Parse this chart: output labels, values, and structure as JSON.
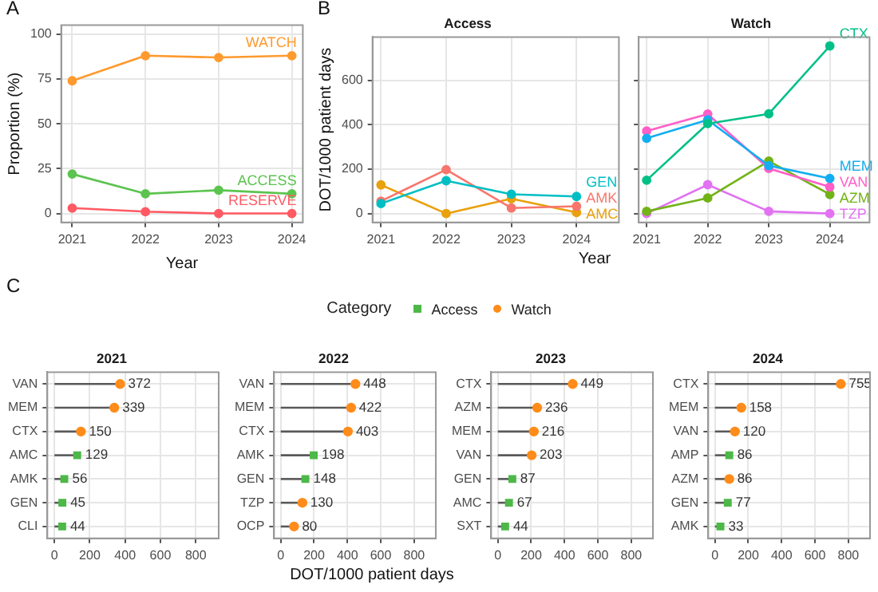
{
  "chart_data": [
    {
      "type": "line",
      "annotations": [
        "A"
      ],
      "xlabel": "Year",
      "ylabel": "Proportion (%)",
      "x": [
        2021,
        2022,
        2023,
        2024
      ],
      "xlim": [
        2020.85,
        2024.15
      ],
      "xticks": [
        2021,
        2022,
        2023,
        2024
      ],
      "ylim": [
        -5,
        105
      ],
      "yticks": [
        0,
        25,
        50,
        75,
        100
      ],
      "grid": true,
      "marker": "circle",
      "legend": false,
      "series": [
        {
          "name": "WATCH",
          "color": "#ff9a2e",
          "values": [
            74,
            88,
            87,
            88
          ]
        },
        {
          "name": "ACCESS",
          "color": "#5cc44f",
          "values": [
            22,
            11,
            13,
            11
          ]
        },
        {
          "name": "RESERVE",
          "color": "#ff5a64",
          "values": [
            3,
            1,
            0,
            0
          ]
        }
      ]
    },
    {
      "type": "line",
      "annotations": [
        "B"
      ],
      "title": "Access",
      "xlabel": "Year",
      "ylabel": "DOT/1000 patient days",
      "x": [
        2021,
        2022,
        2023,
        2024
      ],
      "xlim": [
        2020.87,
        2024.65
      ],
      "xticks": [
        2021,
        2022,
        2023,
        2024
      ],
      "ylim": [
        -40,
        795
      ],
      "yticks": [
        0,
        200,
        400,
        600
      ],
      "grid": true,
      "marker": "circle",
      "legend": false,
      "series": [
        {
          "name": "GEN",
          "color": "#00bfc4",
          "values": [
            45,
            148,
            87,
            77
          ]
        },
        {
          "name": "AMK",
          "color": "#f8766d",
          "values": [
            56,
            198,
            25,
            33
          ]
        },
        {
          "name": "AMC",
          "color": "#e9a10c",
          "values": [
            129,
            0,
            67,
            5
          ]
        }
      ]
    },
    {
      "type": "line",
      "title": "Watch",
      "x": [
        2021,
        2022,
        2023,
        2024
      ],
      "xlim": [
        2020.87,
        2024.65
      ],
      "xticks": [
        2021,
        2022,
        2023,
        2024
      ],
      "ylim": [
        -40,
        795
      ],
      "yticks": [
        0,
        200,
        400,
        600
      ],
      "grid": true,
      "marker": "circle",
      "legend": false,
      "tick_labels": "x",
      "series": [
        {
          "name": "CTX",
          "color": "#00c087",
          "values": [
            150,
            405,
            449,
            755
          ]
        },
        {
          "name": "MEM",
          "color": "#14aef0",
          "values": [
            339,
            422,
            216,
            158
          ]
        },
        {
          "name": "VAN",
          "color": "#ff5fc8",
          "values": [
            372,
            448,
            203,
            120
          ]
        },
        {
          "name": "AZM",
          "color": "#72b317",
          "values": [
            10,
            70,
            236,
            86
          ]
        },
        {
          "name": "TZP",
          "color": "#e272f2",
          "values": [
            0,
            130,
            10,
            0
          ]
        }
      ]
    },
    {
      "type": "lollipop",
      "orientation": "horizontal",
      "annotations": [
        "C"
      ],
      "title": "2021",
      "legend": "top",
      "legend_title": "Category",
      "categories": [
        "VAN",
        "MEM",
        "CTX",
        "AMC",
        "AMK",
        "GEN",
        "CLI"
      ],
      "xlim": [
        -40,
        930
      ],
      "xticks": [
        0,
        200,
        400,
        600,
        800
      ],
      "grid": true,
      "data_labels": true,
      "series": [
        {
          "name": "Access",
          "color": "#4db848",
          "marker": "square",
          "values": [
            null,
            null,
            null,
            129,
            56,
            45,
            44
          ]
        },
        {
          "name": "Watch",
          "color": "#ff8c1a",
          "marker": "circle",
          "values": [
            372,
            339,
            150,
            null,
            null,
            null,
            null
          ]
        }
      ]
    },
    {
      "type": "lollipop",
      "orientation": "horizontal",
      "title": "2022",
      "xlabel": "DOT/1000 patient days",
      "categories": [
        "VAN",
        "MEM",
        "CTX",
        "AMK",
        "GEN",
        "TZP",
        "OCP"
      ],
      "xlim": [
        -40,
        930
      ],
      "xticks": [
        0,
        200,
        400,
        600,
        800
      ],
      "grid": true,
      "data_labels": true,
      "series": [
        {
          "color": "#4db848",
          "marker": "square",
          "values": [
            null,
            null,
            null,
            198,
            148,
            null,
            null
          ]
        },
        {
          "color": "#ff8c1a",
          "marker": "circle",
          "values": [
            448,
            422,
            403,
            null,
            null,
            130,
            80
          ]
        }
      ]
    },
    {
      "type": "lollipop",
      "orientation": "horizontal",
      "title": "2023",
      "categories": [
        "CTX",
        "AZM",
        "MEM",
        "VAN",
        "GEN",
        "AMC",
        "SXT"
      ],
      "xlim": [
        -40,
        930
      ],
      "xticks": [
        0,
        200,
        400,
        600,
        800
      ],
      "grid": true,
      "data_labels": true,
      "series": [
        {
          "color": "#4db848",
          "marker": "square",
          "values": [
            null,
            null,
            null,
            null,
            87,
            67,
            44
          ]
        },
        {
          "color": "#ff8c1a",
          "marker": "circle",
          "values": [
            449,
            236,
            216,
            203,
            null,
            null,
            null
          ]
        }
      ]
    },
    {
      "type": "lollipop",
      "orientation": "horizontal",
      "title": "2024",
      "categories": [
        "CTX",
        "MEM",
        "VAN",
        "AMP",
        "AZM",
        "GEN",
        "AMK"
      ],
      "xlim": [
        -40,
        930
      ],
      "xticks": [
        0,
        200,
        400,
        600,
        800
      ],
      "grid": true,
      "data_labels": true,
      "series": [
        {
          "color": "#4db848",
          "marker": "square",
          "values": [
            null,
            null,
            null,
            86,
            null,
            77,
            33
          ]
        },
        {
          "color": "#ff8c1a",
          "marker": "circle",
          "values": [
            755,
            158,
            120,
            null,
            86,
            null,
            null
          ]
        }
      ]
    }
  ]
}
